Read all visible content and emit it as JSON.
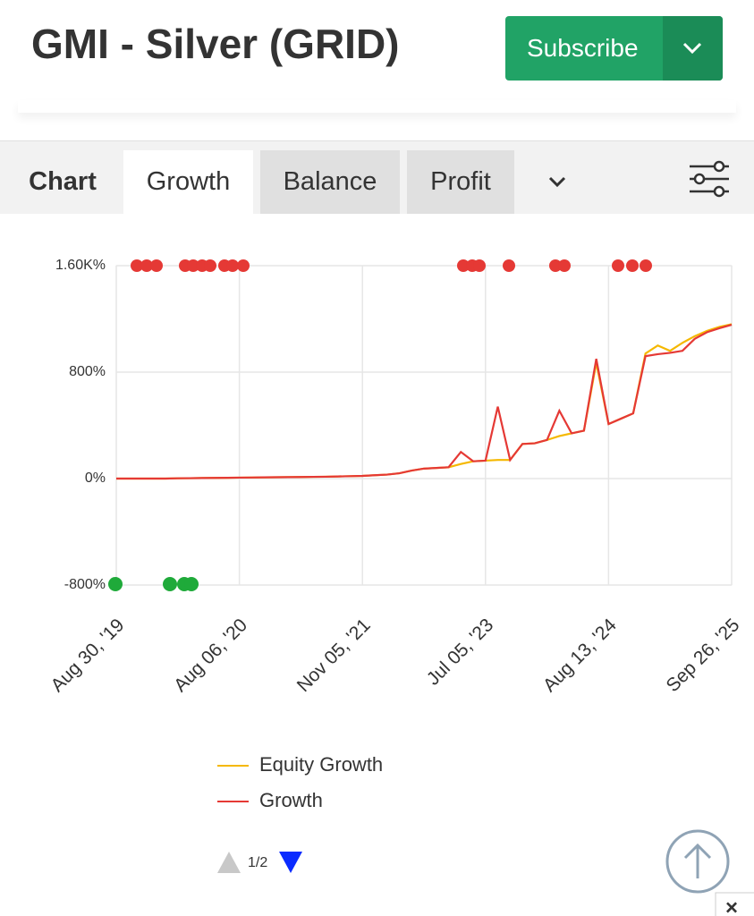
{
  "header": {
    "title": "GMI - Silver (GRID)",
    "subscribe": "Subscribe"
  },
  "tabs": [
    "Chart",
    "Growth",
    "Balance",
    "Profit"
  ],
  "chart_data": {
    "type": "line",
    "categories": [
      "Aug 30, '19",
      null,
      null,
      null,
      null,
      null,
      null,
      null,
      null,
      null,
      "Aug 06, '20",
      null,
      null,
      null,
      null,
      null,
      null,
      null,
      null,
      null,
      "Nov 05, '21",
      null,
      null,
      null,
      null,
      null,
      null,
      null,
      null,
      null,
      "Jul 05, '23",
      null,
      null,
      null,
      null,
      null,
      null,
      null,
      null,
      null,
      "Aug 13, '24",
      null,
      null,
      null,
      null,
      null,
      null,
      null,
      null,
      null,
      "Sep 26, '25"
    ],
    "series": [
      {
        "name": "Equity Growth",
        "color": "#f5b800",
        "values": [
          0,
          0,
          0,
          0,
          0,
          2,
          3,
          4,
          5,
          6,
          7,
          8,
          9,
          10,
          11,
          12,
          13,
          14,
          16,
          18,
          20,
          25,
          30,
          40,
          60,
          75,
          80,
          85,
          110,
          130,
          135,
          140,
          140,
          260,
          265,
          290,
          320,
          340,
          360,
          870,
          410,
          450,
          490,
          940,
          1000,
          960,
          1020,
          1070,
          1110,
          1140,
          1160
        ]
      },
      {
        "name": "Growth",
        "color": "#e53935",
        "values": [
          0,
          0,
          0,
          0,
          0,
          2,
          3,
          4,
          5,
          6,
          7,
          8,
          9,
          10,
          11,
          12,
          13,
          14,
          16,
          18,
          20,
          25,
          30,
          40,
          60,
          75,
          80,
          85,
          200,
          130,
          135,
          540,
          140,
          260,
          265,
          290,
          510,
          340,
          360,
          900,
          410,
          450,
          490,
          920,
          935,
          945,
          960,
          1050,
          1100,
          1130,
          1156
        ]
      }
    ],
    "ylim": [
      -800,
      1600
    ],
    "yticks": [
      {
        "value": 1600,
        "label": "1.60K%"
      },
      {
        "value": 800,
        "label": "800%"
      },
      {
        "value": 0,
        "label": "0%"
      },
      {
        "value": -800,
        "label": "-800%"
      }
    ],
    "grid": true
  },
  "pager": "1/2",
  "close": "×"
}
